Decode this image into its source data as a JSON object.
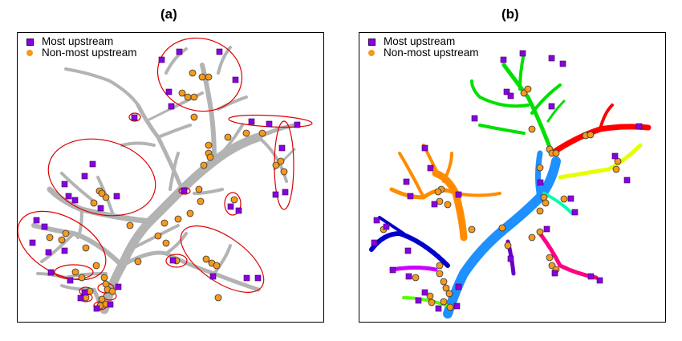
{
  "panel_a": {
    "title": "(a)",
    "legend": {
      "upstream": "Most upstream",
      "non_upstream": "Non-most upstream"
    }
  },
  "panel_b": {
    "title": "(b)",
    "legend": {
      "upstream": "Most upstream",
      "non_upstream": "Non-most upstream"
    }
  },
  "colors": {
    "network_gray": "#b3b3b3",
    "most_upstream": "#8b00e0",
    "non_most_upstream": "#f59a1c",
    "cluster_ellipse": "#dd0000",
    "subnetwork_colors": [
      "#1e90ff",
      "#ff8c00",
      "#00e000",
      "#ff0000",
      "#e6ff00",
      "#00ffb0",
      "#0000cc",
      "#cc00ff",
      "#ff0080",
      "#6600cc",
      "#55ff00"
    ]
  },
  "marker_types": [
    "square",
    "circle"
  ]
}
